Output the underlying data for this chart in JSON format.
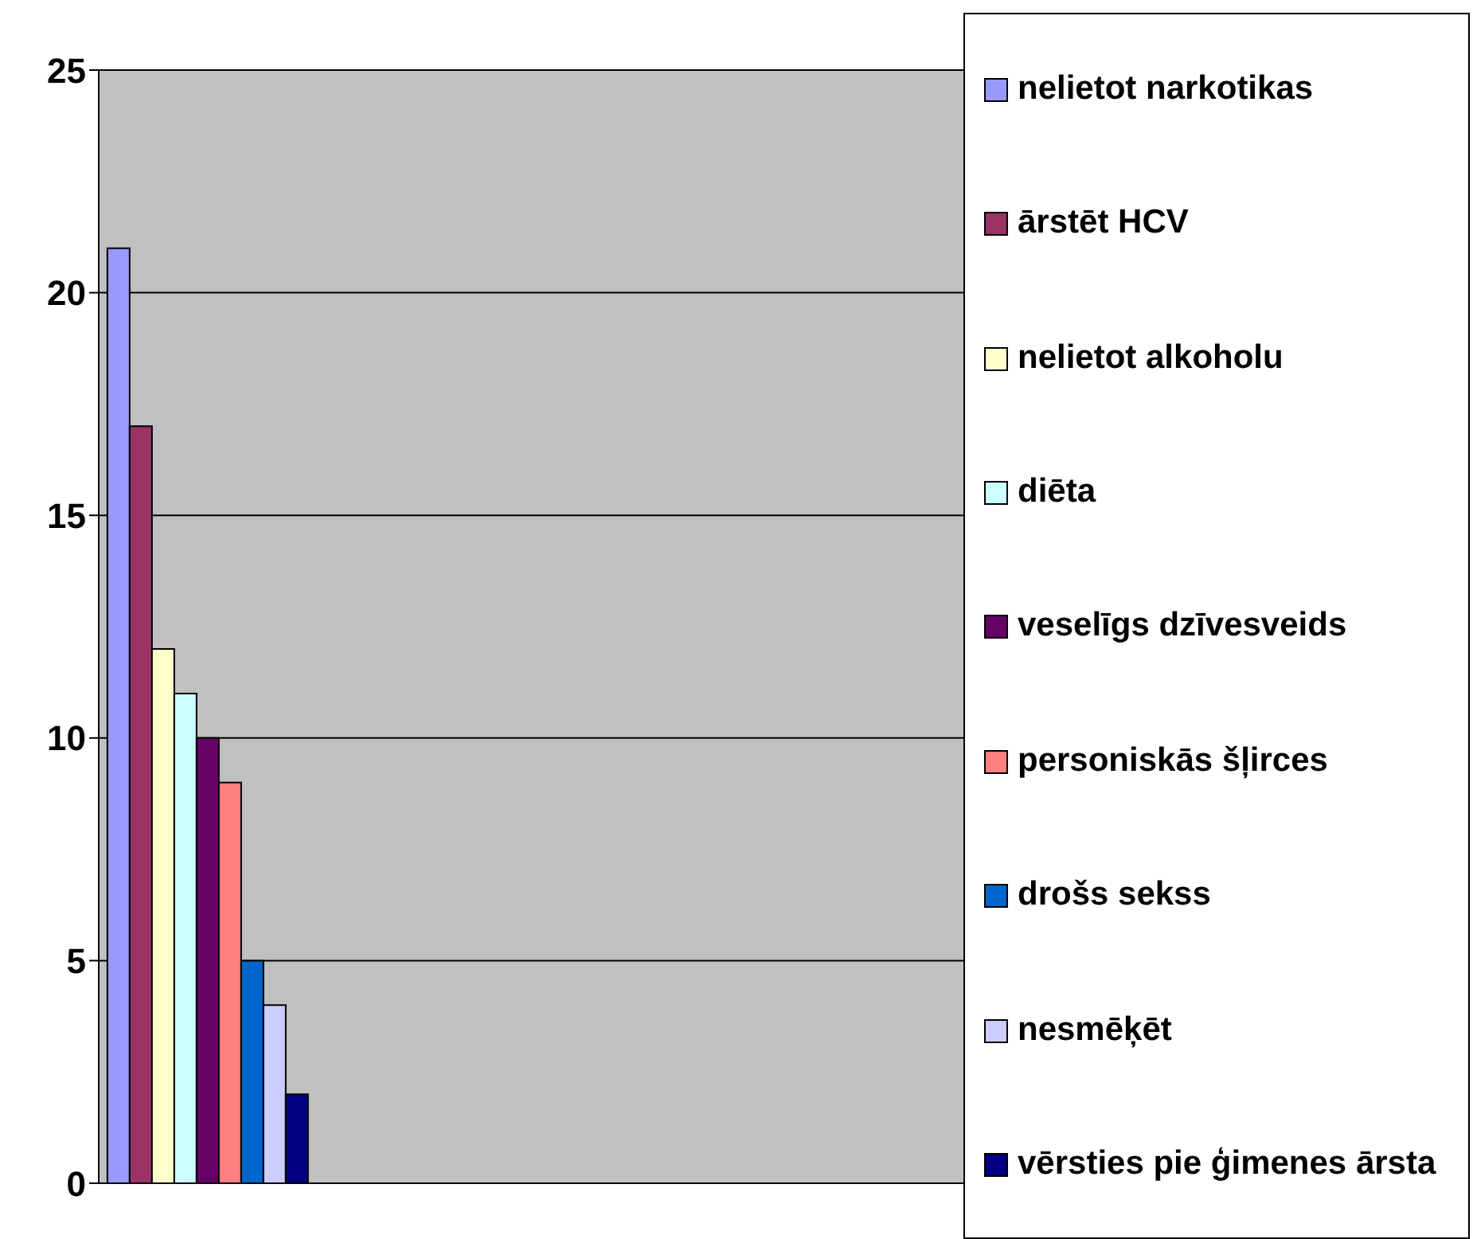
{
  "chart_data": {
    "type": "bar",
    "categories": [
      null,
      null,
      null,
      null
    ],
    "series": [
      {
        "name": "nelietot narkotikas",
        "color": "#9999ff",
        "values": [
          21,
          null,
          null,
          null
        ]
      },
      {
        "name": "ārstēt HCV",
        "color": "#993366",
        "values": [
          17,
          null,
          null,
          null
        ]
      },
      {
        "name": "nelietot alkoholu",
        "color": "#ffffcc",
        "values": [
          12,
          null,
          null,
          null
        ]
      },
      {
        "name": "diēta",
        "color": "#ccffff",
        "values": [
          11,
          null,
          null,
          null
        ]
      },
      {
        "name": "veselīgs dzīvesveids",
        "color": "#660066",
        "values": [
          10,
          null,
          null,
          null
        ]
      },
      {
        "name": "personiskās šļirces",
        "color": "#ff8080",
        "values": [
          9,
          null,
          null,
          null
        ]
      },
      {
        "name": "drošs sekss",
        "color": "#0066cc",
        "values": [
          5,
          null,
          null,
          null
        ]
      },
      {
        "name": "nesmēķēt",
        "color": "#ccccff",
        "values": [
          4,
          null,
          null,
          null
        ]
      },
      {
        "name": "vērsties pie ģimenes ārsta",
        "color": "#000080",
        "values": [
          2,
          null,
          null,
          null
        ]
      }
    ],
    "ylim": [
      0,
      25
    ],
    "yticks": [
      0,
      5,
      10,
      15,
      20,
      25
    ],
    "grid": "y",
    "legend": "right",
    "tick_labels": "y"
  }
}
